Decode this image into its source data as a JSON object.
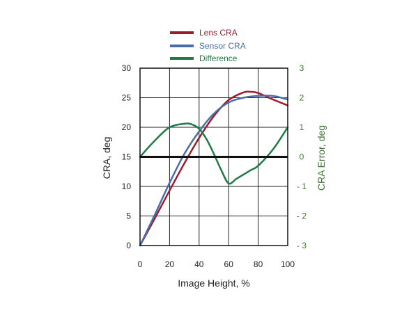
{
  "colors": {
    "lens": "#9b1c2c",
    "sensor": "#4a6da8",
    "difference": "#1f7a45",
    "axis": "#111111",
    "grid": "#222222",
    "right_axis_text": "#3a7a2e"
  },
  "chart_data": {
    "type": "line",
    "xlabel": "Image Height, %",
    "ylabel": "CRA, deg",
    "y2label": "CRA Error, deg",
    "xlim": [
      0,
      100
    ],
    "ylim": [
      0,
      30
    ],
    "y2lim": [
      -3,
      3
    ],
    "grid": true,
    "legend_position": "top-center",
    "x_ticks": [
      "0",
      "20",
      "40",
      "60",
      "80",
      "100"
    ],
    "y_ticks": [
      "0",
      "5",
      "10",
      "15",
      "20",
      "25",
      "30"
    ],
    "y2_ticks": [
      "- 3",
      "- 2",
      "- 1",
      "0",
      "1",
      "2",
      "3"
    ],
    "y2_tick_values": [
      -3,
      -2,
      -1,
      0,
      1,
      2,
      3
    ],
    "series": [
      {
        "name": "Lens CRA",
        "axis": "left",
        "x": [
          0,
          10,
          20,
          30,
          40,
          50,
          60,
          70,
          75,
          80,
          90,
          100
        ],
        "y": [
          0,
          4.6,
          9.3,
          13.9,
          18.2,
          21.9,
          24.6,
          25.9,
          26.0,
          25.8,
          24.7,
          23.7
        ]
      },
      {
        "name": "Sensor CRA",
        "axis": "left",
        "x": [
          0,
          10,
          20,
          30,
          40,
          50,
          60,
          70,
          80,
          90,
          100
        ],
        "y": [
          0,
          5.2,
          10.6,
          15.5,
          19.3,
          22.3,
          24.2,
          25.0,
          25.3,
          25.3,
          24.7
        ]
      },
      {
        "name": "Difference",
        "axis": "right",
        "x": [
          0,
          10,
          20,
          30,
          35,
          40,
          45,
          50,
          55,
          60,
          65,
          70,
          75,
          80,
          90,
          100
        ],
        "y": [
          0,
          0.55,
          1.0,
          1.12,
          1.1,
          0.95,
          0.6,
          0.1,
          -0.45,
          -0.9,
          -0.75,
          -0.6,
          -0.45,
          -0.3,
          0.25,
          1.0
        ]
      }
    ]
  }
}
